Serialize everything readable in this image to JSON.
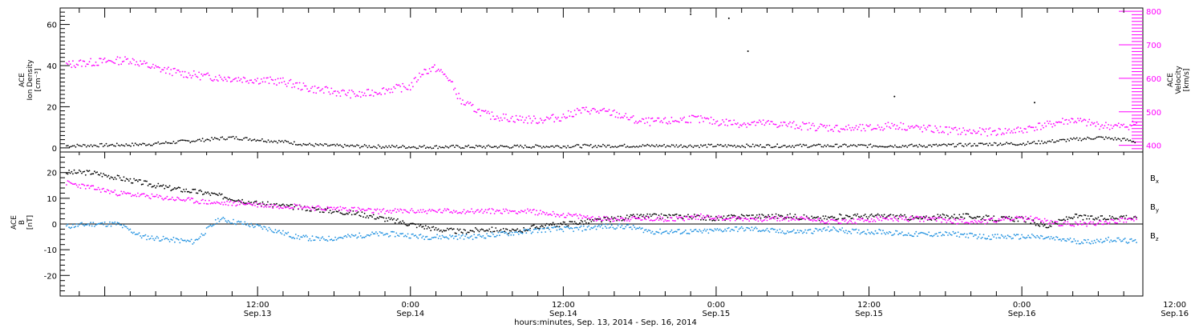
{
  "colors": {
    "black": "#000000",
    "magenta": "#ff00ff",
    "blue": "#1e90e0"
  },
  "chart_data": [
    {
      "type": "scatter",
      "panel": "top",
      "xlabel": "hours:minutes, Sep. 13, 2014 - Sep. 16, 2014",
      "x_range_hours": [
        -3.5,
        81.5
      ],
      "x_ticks": [
        {
          "hours": 12,
          "time": "12:00",
          "date": "Sep.13"
        },
        {
          "hours": 24,
          "time": "0:00",
          "date": "Sep.14"
        },
        {
          "hours": 36,
          "time": "12:00",
          "date": "Sep.14"
        },
        {
          "hours": 48,
          "time": "0:00",
          "date": "Sep.15"
        },
        {
          "hours": 60,
          "time": "12:00",
          "date": "Sep.15"
        },
        {
          "hours": 72,
          "time": "0:00",
          "date": "Sep.16"
        },
        {
          "hours": 84,
          "time": "12:00",
          "date": "Sep.16"
        }
      ],
      "left_axis": {
        "label_lines": [
          "ACE",
          "Ion Density",
          "[cm⁻³]"
        ],
        "ylim": [
          -2,
          68
        ],
        "ticks": [
          0,
          20,
          40,
          60
        ]
      },
      "right_axis": {
        "label_lines": [
          "ACE",
          "Velocity",
          "[km/s]"
        ],
        "ylim": [
          380,
          810
        ],
        "ticks": [
          400,
          500,
          600,
          700,
          800
        ],
        "color": "#ff00ff"
      },
      "series": [
        {
          "name": "Density",
          "axis": "left",
          "color": "#000000",
          "x": [
            -3,
            2,
            4,
            6,
            8,
            10,
            12,
            14,
            16,
            18,
            20,
            22,
            24,
            28,
            32,
            36,
            40,
            44,
            48,
            52,
            56,
            60,
            64,
            66,
            68,
            70,
            72,
            74,
            76,
            78,
            80,
            81
          ],
          "y": [
            1,
            1.5,
            2,
            3,
            4,
            5,
            4,
            3,
            1.5,
            1,
            0.8,
            0.6,
            0.5,
            0.5,
            0.6,
            0.8,
            1,
            1,
            1,
            1,
            1,
            1,
            1,
            1.2,
            1.5,
            2,
            2,
            3,
            4,
            5,
            4,
            3
          ]
        },
        {
          "name": "Velocity",
          "axis": "right",
          "color": "#ff00ff",
          "x": [
            -3,
            -2,
            0,
            2,
            4,
            6,
            8,
            10,
            12,
            14,
            16,
            18,
            20,
            22,
            24,
            25,
            26,
            27,
            28,
            30,
            32,
            34,
            36,
            37,
            38,
            40,
            42,
            44,
            46,
            48,
            50,
            52,
            54,
            56,
            58,
            60,
            62,
            64,
            66,
            68,
            70,
            72,
            73,
            74,
            75,
            76,
            78,
            80,
            81
          ],
          "y": [
            640,
            645,
            650,
            655,
            630,
            615,
            605,
            600,
            595,
            590,
            570,
            560,
            550,
            565,
            575,
            620,
            630,
            600,
            530,
            490,
            480,
            475,
            485,
            500,
            505,
            495,
            470,
            470,
            480,
            470,
            465,
            465,
            460,
            455,
            450,
            450,
            460,
            450,
            445,
            440,
            440,
            445,
            455,
            460,
            470,
            475,
            460,
            455,
            465
          ]
        }
      ]
    },
    {
      "type": "scatter",
      "panel": "bottom",
      "x_range_hours": [
        -3.5,
        81.5
      ],
      "left_axis": {
        "label_lines": [
          "ACE",
          "B",
          "[nT]"
        ],
        "ylim": [
          -28,
          28
        ],
        "ticks": [
          -20,
          -10,
          0,
          10,
          20
        ]
      },
      "zero_line": true,
      "series": [
        {
          "name": "Bx",
          "label": "B",
          "sub": "x",
          "color": "#000000",
          "x": [
            -3,
            -1,
            1,
            3,
            5,
            8,
            10,
            12,
            14,
            16,
            18,
            20,
            22,
            24,
            26,
            28,
            30,
            32,
            34,
            36,
            38,
            40,
            42,
            44,
            46,
            48,
            50,
            52,
            54,
            56,
            58,
            60,
            62,
            64,
            66,
            68,
            70,
            72,
            74,
            76,
            78,
            80,
            81
          ],
          "y": [
            20,
            20,
            18,
            16,
            14,
            12,
            10,
            8,
            7,
            6,
            5,
            4,
            2,
            0,
            -2,
            -3,
            -2,
            -3,
            -1,
            0,
            1,
            2,
            3,
            3,
            3,
            2,
            3,
            3,
            3,
            2,
            3,
            3,
            3,
            2,
            3,
            3,
            2,
            2,
            -1,
            3,
            2,
            3,
            2
          ]
        },
        {
          "name": "By",
          "label": "B",
          "sub": "y",
          "color": "#1e90e0",
          "x": [
            -3,
            -1,
            1,
            3,
            5,
            7,
            9,
            11,
            13,
            15,
            17,
            19,
            21,
            23,
            25,
            27,
            29,
            31,
            33,
            35,
            37,
            39,
            41,
            43,
            45,
            47,
            49,
            51,
            53,
            55,
            57,
            59,
            61,
            63,
            65,
            67,
            69,
            71,
            73,
            75,
            77,
            79,
            81
          ],
          "y": [
            -1,
            0,
            0,
            -5,
            -6,
            -7,
            2,
            0,
            -2,
            -5,
            -6,
            -5,
            -4,
            -4,
            -5,
            -5,
            -5,
            -4,
            -3,
            -2,
            -2,
            -1,
            -1,
            -3,
            -3,
            -3,
            -2,
            -2,
            -3,
            -3,
            -2,
            -3,
            -3,
            -4,
            -4,
            -4,
            -5,
            -5,
            -5,
            -6,
            -7,
            -6,
            -7
          ]
        },
        {
          "name": "Bz",
          "label": "B",
          "sub": "z",
          "color": "#ff00ff",
          "x": [
            -3,
            -1,
            1,
            3,
            5,
            7,
            9,
            11,
            13,
            15,
            17,
            19,
            21,
            23,
            25,
            27,
            29,
            31,
            33,
            35,
            37,
            39,
            41,
            43,
            45,
            47,
            49,
            51,
            53,
            55,
            57,
            59,
            61,
            63,
            65,
            67,
            69,
            71,
            73,
            75,
            77,
            79,
            81
          ],
          "y": [
            16,
            14,
            12,
            11,
            10,
            9,
            8,
            8,
            7,
            7,
            6,
            6,
            5,
            5,
            5,
            5,
            5,
            5,
            5,
            4,
            3,
            2,
            2,
            2,
            2,
            3,
            2,
            2,
            2,
            2,
            1,
            1,
            2,
            2,
            2,
            1,
            1,
            2,
            2,
            0,
            0,
            1,
            2
          ]
        }
      ]
    }
  ]
}
